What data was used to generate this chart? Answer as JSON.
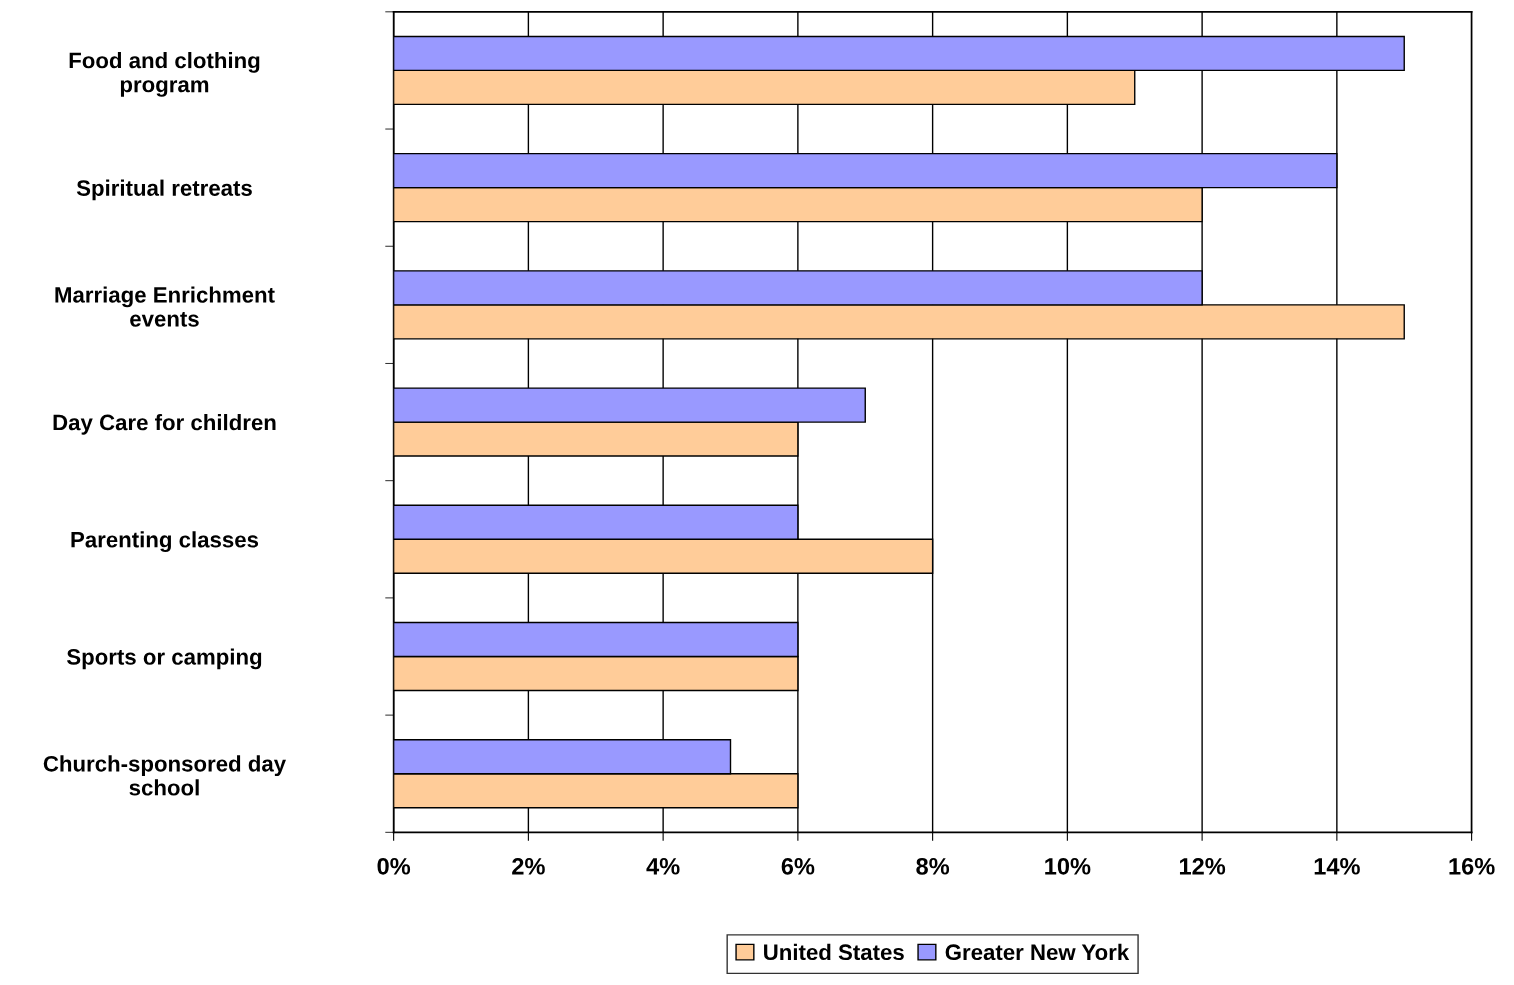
{
  "chart_data": {
    "type": "bar",
    "orientation": "horizontal",
    "categories": [
      "Food and clothing\nprogram",
      "Spiritual retreats",
      "Marriage Enrichment\nevents",
      "Day Care for children",
      "Parenting classes",
      "Sports or camping",
      "Church-sponsored day\nschool"
    ],
    "series": [
      {
        "name": "United States",
        "color": "#ffcc99",
        "values": [
          11,
          12,
          15,
          6,
          8,
          6,
          6
        ]
      },
      {
        "name": "Greater New York",
        "color": "#9999ff",
        "values": [
          15,
          14,
          12,
          7,
          6,
          6,
          5
        ]
      }
    ],
    "xlim": [
      0,
      16
    ],
    "xticks": [
      {
        "value": 0,
        "label": "0%"
      },
      {
        "value": 2,
        "label": "2%"
      },
      {
        "value": 4,
        "label": "4%"
      },
      {
        "value": 6,
        "label": "6%"
      },
      {
        "value": 8,
        "label": "8%"
      },
      {
        "value": 10,
        "label": "10%"
      },
      {
        "value": 12,
        "label": "12%"
      },
      {
        "value": 14,
        "label": "14%"
      },
      {
        "value": 16,
        "label": "16%"
      }
    ],
    "grid": "x",
    "legend": "bottom"
  }
}
